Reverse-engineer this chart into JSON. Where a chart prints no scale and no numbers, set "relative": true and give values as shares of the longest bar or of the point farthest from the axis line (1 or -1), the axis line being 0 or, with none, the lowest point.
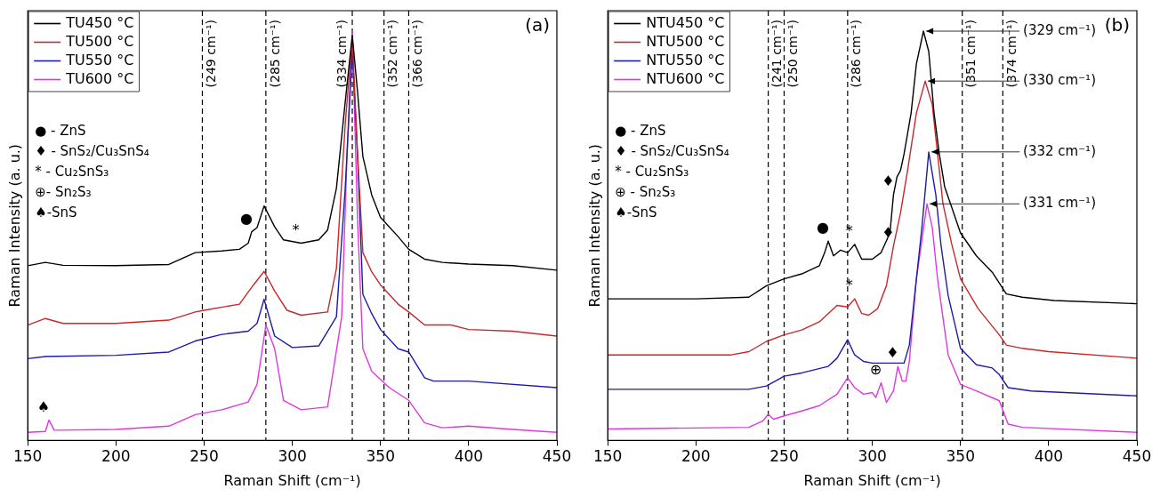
{
  "chart_data": [
    {
      "type": "line",
      "title": "(a)",
      "xlabel": "Raman Shift (cm⁻¹)",
      "ylabel": "Raman Intensity (a. u.)",
      "relative": true,
      "xlim": [
        150,
        450
      ],
      "xticks": [
        150,
        200,
        250,
        300,
        350,
        400,
        450
      ],
      "legend": "top left",
      "marker": "none",
      "line_style": "solid",
      "series": [
        {
          "name": "TU450 °C",
          "color": "#000000",
          "x": [
            150,
            160,
            170,
            200,
            230,
            245,
            260,
            270,
            275,
            277,
            280,
            284,
            290,
            295,
            305,
            315,
            320,
            325,
            330,
            334,
            337,
            340,
            345,
            350,
            360,
            366,
            375,
            385,
            400,
            425,
            450
          ],
          "values": [
            0.427,
            0.435,
            0.428,
            0.427,
            0.43,
            0.459,
            0.463,
            0.467,
            0.482,
            0.51,
            0.52,
            0.573,
            0.522,
            0.49,
            0.482,
            0.49,
            0.514,
            0.616,
            0.827,
            0.99,
            0.851,
            0.694,
            0.6,
            0.545,
            0.498,
            0.467,
            0.443,
            0.435,
            0.431,
            0.427,
            0.416
          ]
        },
        {
          "name": "TU500 °C",
          "color": "#c8282a",
          "x": [
            150,
            160,
            170,
            200,
            230,
            245,
            250,
            270,
            278,
            284,
            290,
            297,
            305,
            320,
            325,
            330,
            334,
            337,
            340,
            345,
            350,
            360,
            366,
            375,
            390,
            400,
            425,
            450
          ],
          "values": [
            0.282,
            0.298,
            0.286,
            0.286,
            0.294,
            0.314,
            0.318,
            0.333,
            0.38,
            0.413,
            0.365,
            0.318,
            0.306,
            0.314,
            0.42,
            0.773,
            0.984,
            0.7,
            0.459,
            0.412,
            0.38,
            0.333,
            0.314,
            0.282,
            0.282,
            0.271,
            0.267,
            0.255
          ]
        },
        {
          "name": "TU550 °C",
          "color": "#1c1ca8",
          "x": [
            150,
            160,
            200,
            230,
            245,
            260,
            275,
            280,
            284,
            290,
            300,
            315,
            325,
            330,
            334,
            337,
            340,
            345,
            350,
            360,
            366,
            375,
            380,
            400,
            450
          ],
          "values": [
            0.2,
            0.205,
            0.208,
            0.216,
            0.243,
            0.259,
            0.267,
            0.286,
            0.345,
            0.255,
            0.227,
            0.231,
            0.302,
            0.616,
            0.953,
            0.694,
            0.357,
            0.31,
            0.271,
            0.224,
            0.216,
            0.153,
            0.145,
            0.145,
            0.129
          ]
        },
        {
          "name": "TU600 °C",
          "color": "#e038e0",
          "x": [
            150,
            160,
            162,
            165,
            200,
            230,
            245,
            260,
            275,
            280,
            285,
            290,
            295,
            305,
            320,
            328,
            331,
            334,
            337,
            340,
            345,
            355,
            366,
            375,
            385,
            400,
            425,
            450
          ],
          "values": [
            0.02,
            0.022,
            0.05,
            0.025,
            0.027,
            0.035,
            0.063,
            0.075,
            0.094,
            0.137,
            0.282,
            0.224,
            0.098,
            0.075,
            0.082,
            0.302,
            0.694,
            1.0,
            0.537,
            0.224,
            0.169,
            0.129,
            0.098,
            0.043,
            0.031,
            0.035,
            0.027,
            0.02
          ]
        }
      ],
      "ref_lines": [
        {
          "axis": "x",
          "value": 249,
          "label": "(249 cm⁻¹)",
          "color": "#000000",
          "line_style": "dashed"
        },
        {
          "axis": "x",
          "value": 285,
          "label": "(285 cm⁻¹)",
          "color": "#000000",
          "line_style": "dashed"
        },
        {
          "axis": "x",
          "value": 334,
          "label": "(334 cm⁻¹)",
          "color": "#000000",
          "line_style": "dashed"
        },
        {
          "axis": "x",
          "value": 352,
          "label": "(352 cm⁻¹)",
          "color": "#000000",
          "line_style": "dashed"
        },
        {
          "axis": "x",
          "value": 366,
          "label": "(366 cm⁻¹)",
          "color": "#000000",
          "line_style": "dashed"
        }
      ],
      "annotations": [
        "● - ZnS",
        "♦ - SnS₂/Cu₃SnS₄",
        "* - Cu₂SnS₃",
        "⊕- Sn₂S₃",
        "♠-SnS",
        {
          "text": "●",
          "x": 277,
          "y": 0.51
        },
        {
          "text": "*",
          "x": 305,
          "y": 0.482
        },
        {
          "text": "♠",
          "x": 162,
          "y": 0.05
        }
      ]
    },
    {
      "type": "line",
      "title": "(b)",
      "xlabel": "Raman Shift (cm⁻¹)",
      "ylabel": "Raman Intensity (a. u.)",
      "relative": true,
      "xlim": [
        150,
        450
      ],
      "xticks": [
        150,
        200,
        250,
        300,
        350,
        400,
        450
      ],
      "legend": "top left",
      "marker": "none",
      "line_style": "solid",
      "series": [
        {
          "name": "NTU450 °C",
          "color": "#000000",
          "x": [
            150,
            200,
            230,
            240,
            250,
            260,
            270,
            273,
            275,
            278,
            282,
            286,
            290,
            294,
            300,
            305,
            310,
            312,
            314,
            316,
            318,
            322,
            325,
            329,
            332,
            335,
            338,
            341,
            350,
            359,
            368,
            376,
            385,
            403,
            450
          ],
          "values": [
            0.346,
            0.346,
            0.35,
            0.378,
            0.395,
            0.407,
            0.427,
            0.459,
            0.487,
            0.451,
            0.465,
            0.459,
            0.479,
            0.443,
            0.443,
            0.459,
            0.507,
            0.6,
            0.644,
            0.66,
            0.7,
            0.8,
            0.92,
            1.0,
            0.95,
            0.8,
            0.7,
            0.62,
            0.507,
            0.451,
            0.411,
            0.358,
            0.35,
            0.342,
            0.334
          ]
        },
        {
          "name": "NTU500 °C",
          "color": "#c8282a",
          "x": [
            150,
            220,
            230,
            240,
            250,
            260,
            270,
            280,
            286,
            290,
            294,
            298,
            303,
            308,
            312,
            316,
            320,
            325,
            330,
            334,
            337,
            340,
            345,
            350,
            360,
            372,
            376,
            385,
            400,
            450
          ],
          "values": [
            0.209,
            0.209,
            0.217,
            0.242,
            0.258,
            0.27,
            0.29,
            0.33,
            0.326,
            0.346,
            0.31,
            0.306,
            0.322,
            0.378,
            0.475,
            0.556,
            0.66,
            0.8,
            0.878,
            0.82,
            0.7,
            0.58,
            0.48,
            0.395,
            0.322,
            0.258,
            0.233,
            0.225,
            0.217,
            0.201
          ]
        },
        {
          "name": "NTU550 °C",
          "color": "#1c1ca8",
          "x": [
            150,
            230,
            240,
            250,
            260,
            275,
            280,
            286,
            290,
            295,
            300,
            318,
            321,
            325,
            328,
            332,
            336,
            339,
            343,
            350,
            359,
            368,
            372,
            377,
            390,
            450
          ],
          "values": [
            0.125,
            0.125,
            0.133,
            0.157,
            0.165,
            0.181,
            0.201,
            0.246,
            0.209,
            0.193,
            0.189,
            0.189,
            0.233,
            0.395,
            0.515,
            0.705,
            0.6,
            0.475,
            0.354,
            0.225,
            0.185,
            0.177,
            0.161,
            0.129,
            0.121,
            0.109
          ]
        },
        {
          "name": "NTU600 °C",
          "color": "#e038e0",
          "x": [
            150,
            230,
            238,
            241,
            244,
            250,
            260,
            270,
            280,
            286,
            290,
            295,
            300,
            302,
            305,
            308,
            312,
            314.5,
            317,
            319,
            321,
            325,
            331,
            334,
            337,
            343,
            350,
            359,
            372,
            377,
            385,
            450
          ],
          "values": [
            0.028,
            0.032,
            0.048,
            0.064,
            0.052,
            0.06,
            0.072,
            0.085,
            0.113,
            0.153,
            0.129,
            0.113,
            0.117,
            0.105,
            0.141,
            0.093,
            0.121,
            0.181,
            0.145,
            0.145,
            0.193,
            0.395,
            0.578,
            0.52,
            0.395,
            0.209,
            0.137,
            0.121,
            0.097,
            0.04,
            0.032,
            0.02
          ]
        }
      ],
      "ref_lines": [
        {
          "axis": "x",
          "value": 241,
          "label": "(241 cm⁻¹)",
          "color": "#000000",
          "line_style": "dashed"
        },
        {
          "axis": "x",
          "value": 250,
          "label": "(250 cm⁻¹)",
          "color": "#000000",
          "line_style": "dashed"
        },
        {
          "axis": "x",
          "value": 286,
          "label": "(286 cm⁻¹)",
          "color": "#000000",
          "line_style": "dashed"
        },
        {
          "axis": "x",
          "value": 351,
          "label": "(351 cm⁻¹)",
          "color": "#000000",
          "line_style": "dashed"
        },
        {
          "axis": "x",
          "value": 374,
          "label": "(374 cm⁻¹)",
          "color": "#000000",
          "line_style": "dashed"
        }
      ],
      "annotations": [
        "● - ZnS",
        "♦ - SnS₂/Cu₃SnS₄",
        "* - Cu₂SnS₃",
        "⊕ - Sn₂S₃",
        "♠-SnS",
        {
          "text": "●",
          "x": 275,
          "y": 0.487
        },
        {
          "text": "*",
          "x": 290,
          "y": 0.479
        },
        {
          "text": "*",
          "x": 290,
          "y": 0.346
        },
        {
          "text": "♦",
          "x": 312,
          "y": 0.6
        },
        {
          "text": "♦",
          "x": 312,
          "y": 0.475
        },
        {
          "text": "♦",
          "x": 314.5,
          "y": 0.181
        },
        {
          "text": "⊕",
          "x": 305,
          "y": 0.141
        },
        {
          "text": "(329 cm⁻¹)",
          "x": 329,
          "y": 1.0
        },
        {
          "text": "(330 cm⁻¹)",
          "x": 330,
          "y": 0.878
        },
        {
          "text": "(332 cm⁻¹)",
          "x": 332,
          "y": 0.705
        },
        {
          "text": "(331 cm⁻¹)",
          "x": 331,
          "y": 0.578
        }
      ]
    }
  ]
}
